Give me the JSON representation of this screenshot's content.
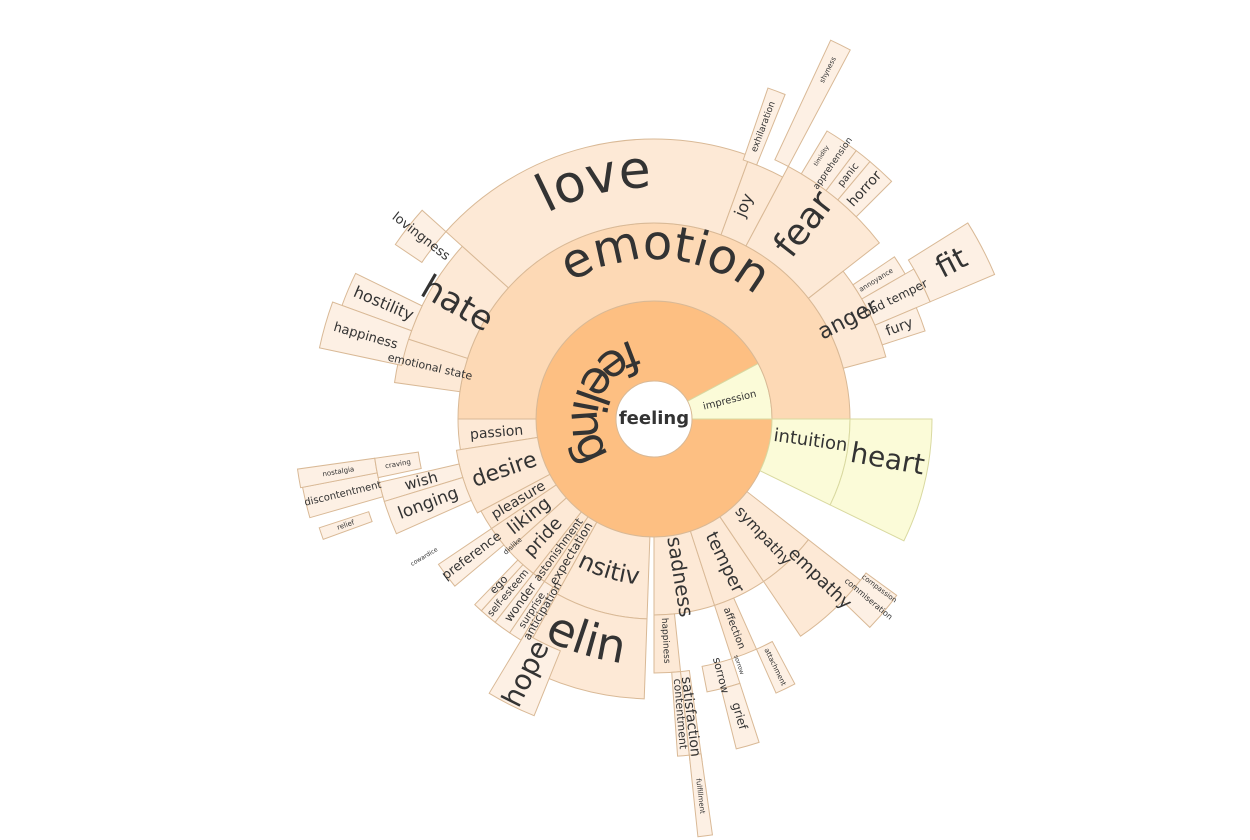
{
  "root": {
    "label": "feeling"
  },
  "colors": {
    "root_center": "#ffffff",
    "feeling_ring": "#fdbf82",
    "emotion_ring": "#fdd9b5",
    "outer_peach": "#fde9d6",
    "tip_peach": "#fdf0e4",
    "impression_yellow": "#fbfbd8",
    "stroke": "#d9b996",
    "stroke_yellow": "#d9d9a0"
  },
  "nodes": {
    "feeling_ring": {
      "label": "feeling"
    },
    "emotion": {
      "label": "emotion"
    },
    "impression": {
      "label": "impression"
    },
    "intuition": {
      "label": "intuition"
    },
    "heart": {
      "label": "heart"
    },
    "love": {
      "label": "love"
    },
    "joy": {
      "label": "joy"
    },
    "exhilaration": {
      "label": "exhilaration"
    },
    "fear": {
      "label": "fear"
    },
    "shyness": {
      "label": "shyness"
    },
    "timidity": {
      "label": "timidity"
    },
    "apprehension": {
      "label": "apprehension"
    },
    "panic": {
      "label": "panic"
    },
    "horror": {
      "label": "horror"
    },
    "anger": {
      "label": "anger"
    },
    "annoyance": {
      "label": "annoyance"
    },
    "bad_temper": {
      "label": "bad temper"
    },
    "fury": {
      "label": "fury"
    },
    "fit": {
      "label": "fit"
    },
    "hate": {
      "label": "hate"
    },
    "lovingness": {
      "label": "lovingness"
    },
    "hostility": {
      "label": "hostility"
    },
    "happiness_outer": {
      "label": "happiness"
    },
    "emotional_state": {
      "label": "emotional state"
    },
    "passion": {
      "label": "passion"
    },
    "desire": {
      "label": "desire"
    },
    "craving": {
      "label": "craving"
    },
    "wish": {
      "label": "wish"
    },
    "longing": {
      "label": "longing"
    },
    "nostalgia": {
      "label": "nostalgia"
    },
    "discontentment": {
      "label": "discontentment"
    },
    "pleasure": {
      "label": "pleasure"
    },
    "liking": {
      "label": "liking"
    },
    "cowardice": {
      "label": "cowardice"
    },
    "relief": {
      "label": "relief"
    },
    "preference": {
      "label": "preference"
    },
    "dislike": {
      "label": "dislike"
    },
    "pride": {
      "label": "pride"
    },
    "self_esteem": {
      "label": "self-esteem"
    },
    "ego": {
      "label": "ego"
    },
    "wonder": {
      "label": "wonder"
    },
    "surprise": {
      "label": "surprise"
    },
    "astonishment": {
      "label": "astonishment"
    },
    "expectation": {
      "label": "expectation"
    },
    "anticipation": {
      "label": "anticipation"
    },
    "hope": {
      "label": "hope"
    },
    "sensitivity": {
      "label": "sensitivity"
    },
    "feelings": {
      "label": "feelings"
    },
    "sadness": {
      "label": "sadness"
    },
    "happiness_inner": {
      "label": "happiness"
    },
    "contentment": {
      "label": "contentment"
    },
    "satisfaction": {
      "label": "satisfaction"
    },
    "fulfillment": {
      "label": "fulfillment"
    },
    "sorrow": {
      "label": "sorrow"
    },
    "sorrow_small": {
      "label": "sorrow"
    },
    "grief": {
      "label": "grief"
    },
    "affection": {
      "label": "affection"
    },
    "attachment": {
      "label": "attachment"
    },
    "temper": {
      "label": "temper"
    },
    "sympathy": {
      "label": "sympathy"
    },
    "empathy": {
      "label": "empathy"
    },
    "commiseration": {
      "label": "commiseration"
    },
    "compassion": {
      "label": "compassion"
    }
  }
}
